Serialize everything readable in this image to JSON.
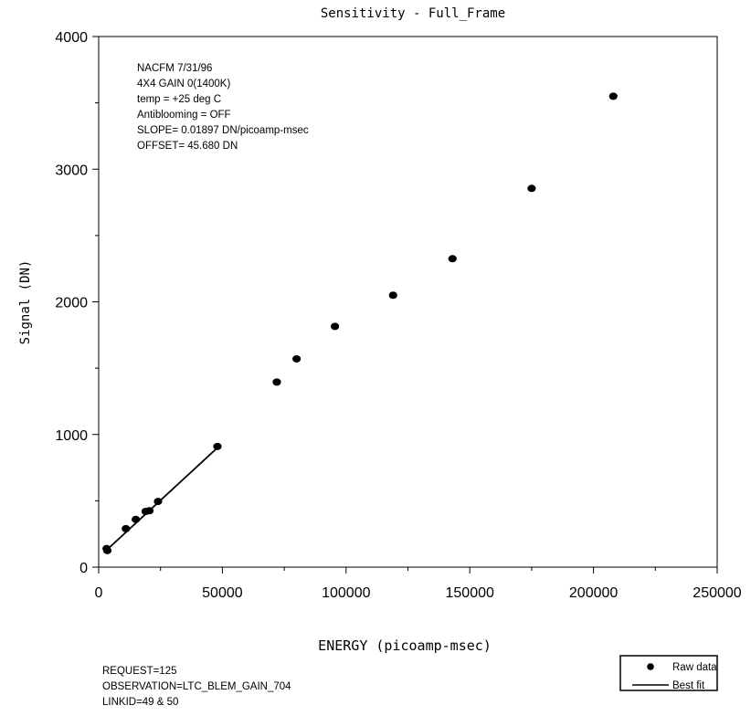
{
  "chart_data": {
    "type": "scatter",
    "title": "Sensitivity - Full_Frame",
    "xlabel": "ENERGY (picoamp-msec)",
    "ylabel": "Signal (DN)",
    "xlim": [
      0,
      250000
    ],
    "ylim": [
      0,
      4000
    ],
    "x_ticks": [
      0,
      50000,
      100000,
      150000,
      200000,
      250000
    ],
    "y_ticks": [
      0,
      1000,
      2000,
      3000,
      4000
    ],
    "x_tick_labels": [
      "0",
      "50000",
      "100000",
      "150000",
      "200000",
      "250000"
    ],
    "y_tick_labels": [
      "0",
      "1000",
      "2000",
      "3000",
      "4000"
    ],
    "grid": false,
    "series": [
      {
        "name": "Raw data",
        "mode": "markers",
        "x": [
          3200,
          3500,
          11000,
          15000,
          19000,
          20500,
          24000,
          48000,
          72000,
          80000,
          95500,
          119000,
          143000,
          175000,
          208000
        ],
        "y": [
          140,
          125,
          290,
          360,
          420,
          425,
          495,
          910,
          1395,
          1570,
          1815,
          2050,
          2325,
          2855,
          3550
        ]
      },
      {
        "name": "Best fit",
        "mode": "line",
        "x": [
          3000,
          48000
        ],
        "y": [
          125,
          900
        ]
      }
    ],
    "annotations": [
      "NACFM   7/31/96",
      "4X4 GAIN 0(1400K)",
      "temp = +25 deg C",
      "Antiblooming = OFF",
      "SLOPE= 0.01897 DN/picoamp-msec",
      "OFFSET= 45.680 DN"
    ],
    "legend_position": "bottom-right"
  },
  "footer": {
    "lines": [
      "REQUEST=125",
      "OBSERVATION=LTC_BLEM_GAIN_704",
      "LINKID=49 & 50"
    ]
  },
  "colors": {
    "ink": "#000000",
    "background": "#ffffff"
  }
}
